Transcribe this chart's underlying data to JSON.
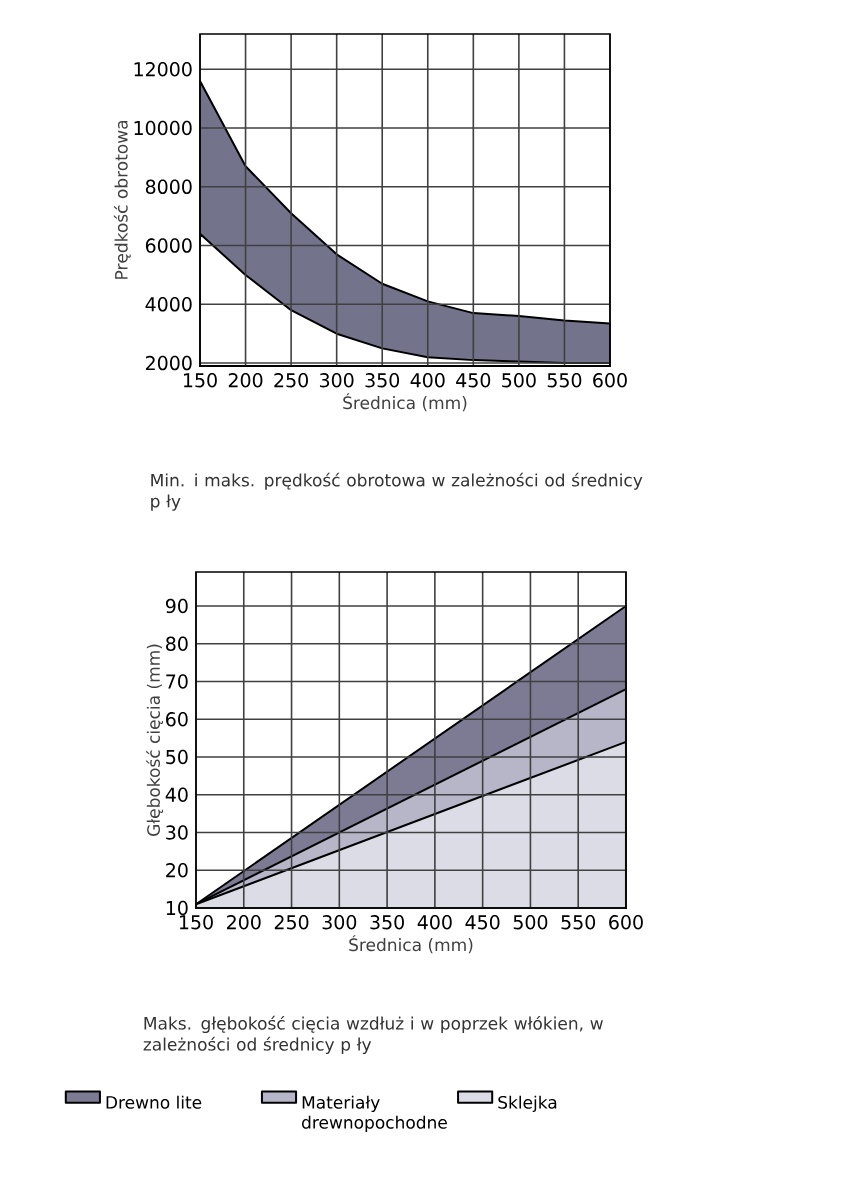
{
  "chart_data": [
    {
      "type": "area",
      "xlabel": "Średnica (mm)",
      "ylabel": "Prędkość obrotowa",
      "x": [
        150,
        200,
        250,
        300,
        350,
        400,
        450,
        500,
        550,
        600
      ],
      "series": [
        {
          "color": "#73738c",
          "values": [
            11600,
            8700,
            7100,
            5700,
            4700,
            4100,
            3700,
            3600,
            3450,
            3350
          ]
        },
        {
          "color": "#ffffff",
          "values": [
            6400,
            5000,
            3800,
            3000,
            2500,
            2200,
            2100,
            2050,
            2000,
            2000
          ]
        }
      ],
      "xlim": [
        150,
        600
      ],
      "ylim": [
        1900,
        13200
      ],
      "xticks": [
        150,
        200,
        250,
        300,
        350,
        400,
        450,
        500,
        550,
        600
      ],
      "yticks": [
        2000,
        4000,
        6000,
        8000,
        10000,
        12000
      ],
      "grid": true,
      "annotations": [
        "Min. i maks. prędkość obrotowa w zależności od średnicy p ły"
      ]
    },
    {
      "type": "area",
      "xlabel": "Średnica (mm)",
      "ylabel": "Głębokość cięcia (mm)",
      "x": [
        150,
        600
      ],
      "series": [
        {
          "name": "Drewno lite",
          "color": "#7c7b93",
          "values": [
            11,
            90
          ]
        },
        {
          "name": "Materiały drewnopochodne",
          "color": "#b7b6c8",
          "values": [
            11,
            68
          ]
        },
        {
          "name": "Sklejka",
          "color": "#dcdce6",
          "values": [
            11,
            54
          ]
        }
      ],
      "xlim": [
        150,
        600
      ],
      "ylim": [
        10,
        99
      ],
      "xticks": [
        150,
        200,
        250,
        300,
        350,
        400,
        450,
        500,
        550,
        600
      ],
      "yticks": [
        10,
        20,
        30,
        40,
        50,
        60,
        70,
        80,
        90
      ],
      "grid": true,
      "legend": "bottom",
      "annotations": [
        "Maks. głębokość cięcia wzdłuż i w poprzek włókien, w zależności od średnicy p ły"
      ]
    }
  ]
}
